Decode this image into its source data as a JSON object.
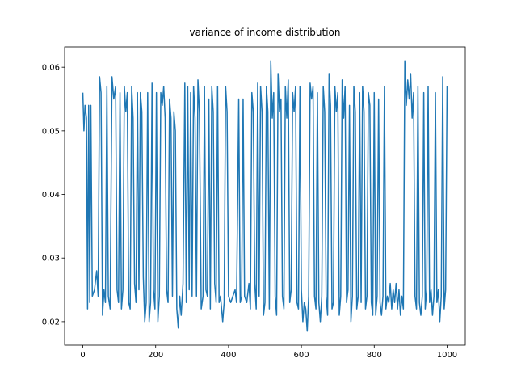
{
  "chart_data": {
    "type": "line",
    "title": "variance of income distribution",
    "xlim": [
      -50,
      1050
    ],
    "ylim": [
      0.0163,
      0.0632
    ],
    "xticks": [
      0,
      200,
      400,
      600,
      800,
      1000
    ],
    "yticks": [
      0.02,
      0.03,
      0.04,
      0.05,
      0.06
    ],
    "series": [
      {
        "color": "#1f77b4",
        "x": [
          0,
          3,
          6,
          10,
          13,
          16,
          19,
          22,
          26,
          32,
          38,
          42,
          46,
          50,
          54,
          58,
          62,
          66,
          70,
          75,
          80,
          85,
          90,
          94,
          98,
          102,
          106,
          110,
          114,
          118,
          122,
          126,
          130,
          134,
          138,
          142,
          146,
          150,
          154,
          158,
          162,
          166,
          170,
          174,
          178,
          182,
          186,
          190,
          194,
          198,
          202,
          206,
          210,
          214,
          218,
          222,
          226,
          230,
          234,
          238,
          242,
          246,
          250,
          254,
          258,
          262,
          266,
          270,
          275,
          280,
          284,
          288,
          292,
          296,
          300,
          304,
          308,
          312,
          316,
          320,
          325,
          330,
          334,
          338,
          342,
          346,
          350,
          354,
          358,
          362,
          366,
          370,
          374,
          378,
          384,
          388,
          392,
          396,
          400,
          406,
          412,
          418,
          422,
          428,
          432,
          436,
          440,
          444,
          450,
          456,
          460,
          464,
          468,
          472,
          476,
          480,
          484,
          488,
          492,
          496,
          500,
          504,
          508,
          512,
          516,
          520,
          524,
          528,
          532,
          536,
          540,
          544,
          548,
          552,
          556,
          560,
          564,
          568,
          572,
          576,
          580,
          584,
          588,
          592,
          596,
          600,
          604,
          608,
          612,
          616,
          620,
          624,
          628,
          632,
          636,
          640,
          644,
          648,
          652,
          656,
          660,
          664,
          668,
          672,
          676,
          680,
          684,
          688,
          692,
          696,
          700,
          704,
          708,
          712,
          716,
          720,
          724,
          728,
          732,
          736,
          740,
          744,
          748,
          752,
          756,
          760,
          764,
          768,
          772,
          776,
          780,
          784,
          788,
          792,
          796,
          800,
          804,
          808,
          812,
          816,
          820,
          824,
          828,
          832,
          836,
          840,
          844,
          848,
          852,
          856,
          860,
          864,
          868,
          872,
          876,
          880,
          884,
          888,
          892,
          896,
          900,
          904,
          908,
          912,
          916,
          920,
          924,
          928,
          932,
          936,
          940,
          944,
          948,
          952,
          956,
          960,
          964,
          968,
          972,
          976,
          980,
          984,
          988,
          992,
          996,
          1000
        ],
        "values": [
          0.056,
          0.05,
          0.054,
          0.052,
          0.022,
          0.054,
          0.023,
          0.054,
          0.024,
          0.025,
          0.028,
          0.024,
          0.0585,
          0.056,
          0.021,
          0.025,
          0.023,
          0.057,
          0.024,
          0.022,
          0.0585,
          0.055,
          0.057,
          0.025,
          0.023,
          0.056,
          0.022,
          0.025,
          0.057,
          0.053,
          0.056,
          0.023,
          0.022,
          0.057,
          0.052,
          0.026,
          0.023,
          0.056,
          0.025,
          0.056,
          0.053,
          0.027,
          0.02,
          0.023,
          0.056,
          0.02,
          0.023,
          0.0575,
          0.025,
          0.022,
          0.056,
          0.02,
          0.024,
          0.056,
          0.054,
          0.057,
          0.052,
          0.025,
          0.023,
          0.055,
          0.052,
          0.024,
          0.053,
          0.05,
          0.022,
          0.019,
          0.024,
          0.021,
          0.026,
          0.0575,
          0.023,
          0.057,
          0.025,
          0.056,
          0.024,
          0.057,
          0.052,
          0.024,
          0.058,
          0.053,
          0.022,
          0.024,
          0.057,
          0.025,
          0.024,
          0.055,
          0.022,
          0.057,
          0.053,
          0.026,
          0.023,
          0.057,
          0.023,
          0.024,
          0.02,
          0.023,
          0.057,
          0.053,
          0.024,
          0.023,
          0.024,
          0.025,
          0.023,
          0.055,
          0.023,
          0.024,
          0.055,
          0.024,
          0.023,
          0.026,
          0.022,
          0.056,
          0.053,
          0.026,
          0.022,
          0.0575,
          0.024,
          0.057,
          0.053,
          0.021,
          0.023,
          0.057,
          0.053,
          0.022,
          0.061,
          0.052,
          0.056,
          0.024,
          0.021,
          0.059,
          0.053,
          0.055,
          0.024,
          0.022,
          0.057,
          0.052,
          0.058,
          0.023,
          0.025,
          0.056,
          0.053,
          0.057,
          0.023,
          0.022,
          0.057,
          0.025,
          0.02,
          0.023,
          0.022,
          0.0185,
          0.024,
          0.0575,
          0.055,
          0.057,
          0.024,
          0.022,
          0.056,
          0.023,
          0.02,
          0.024,
          0.057,
          0.053,
          0.024,
          0.021,
          0.059,
          0.054,
          0.022,
          0.023,
          0.057,
          0.053,
          0.056,
          0.021,
          0.024,
          0.058,
          0.052,
          0.057,
          0.023,
          0.025,
          0.054,
          0.02,
          0.024,
          0.057,
          0.053,
          0.022,
          0.024,
          0.056,
          0.023,
          0.057,
          0.053,
          0.022,
          0.024,
          0.056,
          0.054,
          0.023,
          0.021,
          0.056,
          0.021,
          0.024,
          0.055,
          0.023,
          0.021,
          0.024,
          0.057,
          0.022,
          0.024,
          0.023,
          0.026,
          0.022,
          0.025,
          0.023,
          0.026,
          0.022,
          0.025,
          0.021,
          0.024,
          0.022,
          0.061,
          0.054,
          0.058,
          0.055,
          0.059,
          0.052,
          0.056,
          0.024,
          0.022,
          0.057,
          0.023,
          0.021,
          0.024,
          0.056,
          0.022,
          0.025,
          0.057,
          0.023,
          0.025,
          0.021,
          0.024,
          0.056,
          0.023,
          0.025,
          0.02,
          0.024,
          0.0585,
          0.022,
          0.025,
          0.057
        ]
      }
    ]
  }
}
